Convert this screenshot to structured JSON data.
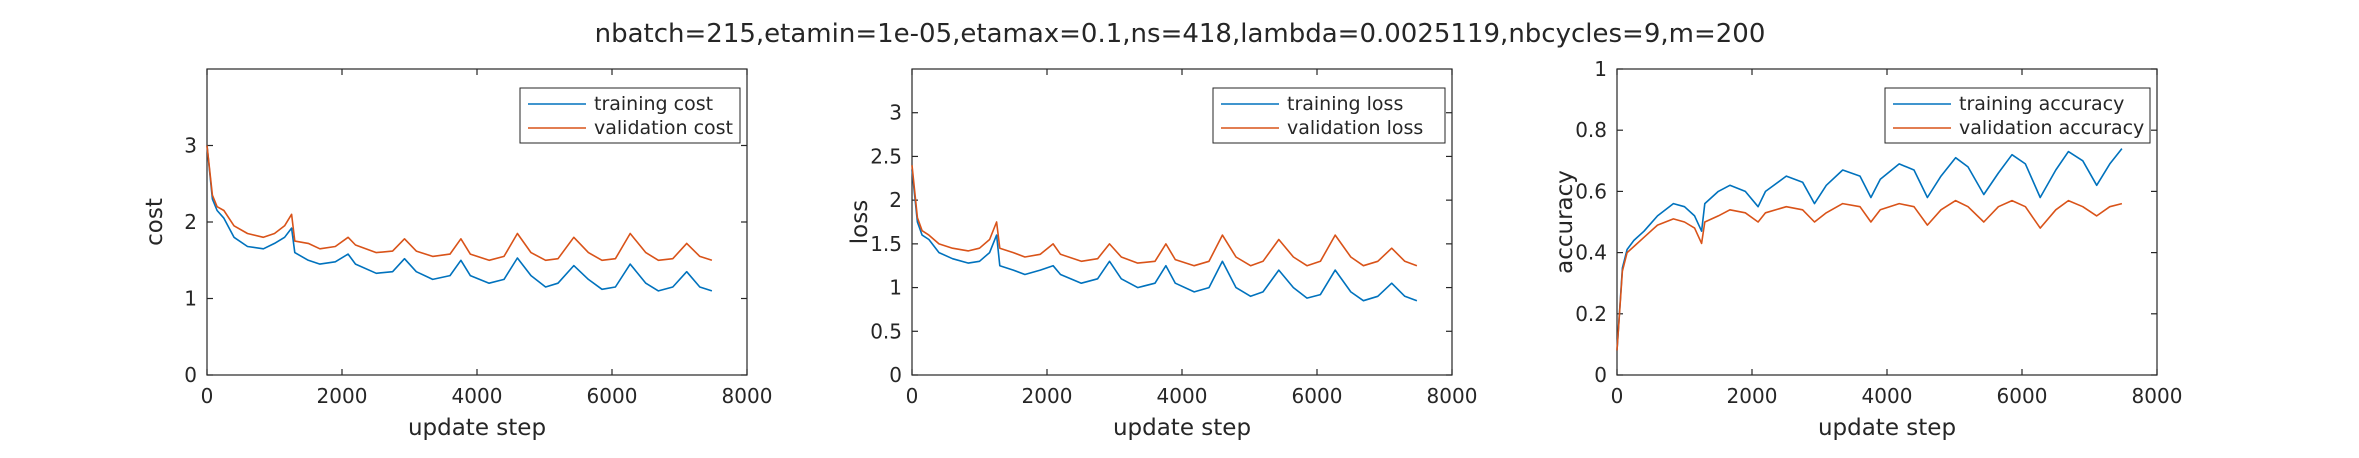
{
  "figure": {
    "title": "nbatch=215,etamin=1e-05,etamax=0.1,ns=418,lambda=0.0025119,nbcycles=9,m=200"
  },
  "chart_data": [
    {
      "type": "line",
      "xlabel": "update step",
      "ylabel": "cost",
      "xlim": [
        0,
        8000
      ],
      "ylim": [
        0,
        4
      ],
      "xticks": [
        0,
        2000,
        4000,
        6000,
        8000
      ],
      "yticks": [
        0,
        1,
        2,
        3
      ],
      "legend_position": "top-right",
      "series": [
        {
          "name": "training cost",
          "color": "#0072BD",
          "x": [
            0,
            80,
            150,
            250,
            400,
            600,
            836,
            1000,
            1150,
            1254,
            1300,
            1500,
            1672,
            1900,
            2090,
            2200,
            2508,
            2750,
            2926,
            3100,
            3344,
            3600,
            3762,
            3900,
            4180,
            4400,
            4598,
            4800,
            5016,
            5200,
            5434,
            5650,
            5852,
            6050,
            6270,
            6500,
            6688,
            6900,
            7106,
            7300,
            7480
          ],
          "y": [
            3.0,
            2.3,
            2.15,
            2.05,
            1.8,
            1.68,
            1.65,
            1.72,
            1.8,
            1.92,
            1.6,
            1.5,
            1.45,
            1.48,
            1.58,
            1.45,
            1.33,
            1.35,
            1.52,
            1.35,
            1.25,
            1.3,
            1.5,
            1.3,
            1.2,
            1.25,
            1.53,
            1.3,
            1.15,
            1.2,
            1.43,
            1.25,
            1.12,
            1.15,
            1.45,
            1.2,
            1.1,
            1.15,
            1.35,
            1.15,
            1.1
          ]
        },
        {
          "name": "validation cost",
          "color": "#D95319",
          "x": [
            0,
            80,
            150,
            250,
            400,
            600,
            836,
            1000,
            1150,
            1254,
            1300,
            1500,
            1672,
            1900,
            2090,
            2200,
            2508,
            2750,
            2926,
            3100,
            3344,
            3600,
            3762,
            3900,
            4180,
            4400,
            4598,
            4800,
            5016,
            5200,
            5434,
            5650,
            5852,
            6050,
            6270,
            6500,
            6688,
            6900,
            7106,
            7300,
            7480
          ],
          "y": [
            3.0,
            2.35,
            2.2,
            2.15,
            1.95,
            1.85,
            1.8,
            1.85,
            1.95,
            2.1,
            1.75,
            1.72,
            1.65,
            1.68,
            1.8,
            1.7,
            1.6,
            1.62,
            1.78,
            1.62,
            1.55,
            1.58,
            1.78,
            1.58,
            1.5,
            1.55,
            1.85,
            1.6,
            1.5,
            1.52,
            1.8,
            1.6,
            1.5,
            1.52,
            1.85,
            1.6,
            1.5,
            1.52,
            1.72,
            1.55,
            1.5
          ]
        }
      ]
    },
    {
      "type": "line",
      "xlabel": "update step",
      "ylabel": "loss",
      "xlim": [
        0,
        8000
      ],
      "ylim": [
        0,
        3.5
      ],
      "xticks": [
        0,
        2000,
        4000,
        6000,
        8000
      ],
      "yticks": [
        0,
        0.5,
        1,
        1.5,
        2,
        2.5,
        3
      ],
      "legend_position": "top-right",
      "series": [
        {
          "name": "training loss",
          "color": "#0072BD",
          "x": [
            0,
            80,
            150,
            250,
            400,
            600,
            836,
            1000,
            1150,
            1254,
            1300,
            1500,
            1672,
            1900,
            2090,
            2200,
            2508,
            2750,
            2926,
            3100,
            3344,
            3600,
            3762,
            3900,
            4180,
            4400,
            4598,
            4800,
            5016,
            5200,
            5434,
            5650,
            5852,
            6050,
            6270,
            6500,
            6688,
            6900,
            7106,
            7300,
            7480
          ],
          "y": [
            2.35,
            1.75,
            1.6,
            1.55,
            1.4,
            1.33,
            1.28,
            1.3,
            1.4,
            1.6,
            1.25,
            1.2,
            1.15,
            1.2,
            1.25,
            1.15,
            1.05,
            1.1,
            1.3,
            1.1,
            1.0,
            1.05,
            1.25,
            1.05,
            0.95,
            1.0,
            1.3,
            1.0,
            0.9,
            0.95,
            1.2,
            1.0,
            0.88,
            0.92,
            1.2,
            0.95,
            0.85,
            0.9,
            1.05,
            0.9,
            0.85
          ]
        },
        {
          "name": "validation loss",
          "color": "#D95319",
          "x": [
            0,
            80,
            150,
            250,
            400,
            600,
            836,
            1000,
            1150,
            1254,
            1300,
            1500,
            1672,
            1900,
            2090,
            2200,
            2508,
            2750,
            2926,
            3100,
            3344,
            3600,
            3762,
            3900,
            4180,
            4400,
            4598,
            4800,
            5016,
            5200,
            5434,
            5650,
            5852,
            6050,
            6270,
            6500,
            6688,
            6900,
            7106,
            7300,
            7480
          ],
          "y": [
            2.4,
            1.8,
            1.65,
            1.6,
            1.5,
            1.45,
            1.42,
            1.45,
            1.55,
            1.75,
            1.45,
            1.4,
            1.35,
            1.38,
            1.5,
            1.38,
            1.3,
            1.33,
            1.5,
            1.35,
            1.28,
            1.3,
            1.5,
            1.32,
            1.25,
            1.3,
            1.6,
            1.35,
            1.25,
            1.3,
            1.55,
            1.35,
            1.25,
            1.3,
            1.6,
            1.35,
            1.25,
            1.3,
            1.45,
            1.3,
            1.25
          ]
        }
      ]
    },
    {
      "type": "line",
      "xlabel": "update step",
      "ylabel": "accuracy",
      "xlim": [
        0,
        8000
      ],
      "ylim": [
        0,
        1
      ],
      "xticks": [
        0,
        2000,
        4000,
        6000,
        8000
      ],
      "yticks": [
        0,
        0.2,
        0.4,
        0.6,
        0.8,
        1
      ],
      "legend_position": "top-right",
      "series": [
        {
          "name": "training accuracy",
          "color": "#0072BD",
          "x": [
            0,
            80,
            150,
            250,
            400,
            600,
            836,
            1000,
            1150,
            1254,
            1300,
            1500,
            1672,
            1900,
            2090,
            2200,
            2508,
            2750,
            2926,
            3100,
            3344,
            3600,
            3762,
            3900,
            4180,
            4400,
            4598,
            4800,
            5016,
            5200,
            5434,
            5650,
            5852,
            6050,
            6270,
            6500,
            6688,
            6900,
            7106,
            7300,
            7480
          ],
          "y": [
            0.08,
            0.35,
            0.41,
            0.44,
            0.47,
            0.52,
            0.56,
            0.55,
            0.52,
            0.47,
            0.56,
            0.6,
            0.62,
            0.6,
            0.55,
            0.6,
            0.65,
            0.63,
            0.56,
            0.62,
            0.67,
            0.65,
            0.58,
            0.64,
            0.69,
            0.67,
            0.58,
            0.65,
            0.71,
            0.68,
            0.59,
            0.66,
            0.72,
            0.69,
            0.58,
            0.67,
            0.73,
            0.7,
            0.62,
            0.69,
            0.74
          ]
        },
        {
          "name": "validation accuracy",
          "color": "#D95319",
          "x": [
            0,
            80,
            150,
            250,
            400,
            600,
            836,
            1000,
            1150,
            1254,
            1300,
            1500,
            1672,
            1900,
            2090,
            2200,
            2508,
            2750,
            2926,
            3100,
            3344,
            3600,
            3762,
            3900,
            4180,
            4400,
            4598,
            4800,
            5016,
            5200,
            5434,
            5650,
            5852,
            6050,
            6270,
            6500,
            6688,
            6900,
            7106,
            7300,
            7480
          ],
          "y": [
            0.08,
            0.34,
            0.4,
            0.42,
            0.45,
            0.49,
            0.51,
            0.5,
            0.48,
            0.43,
            0.5,
            0.52,
            0.54,
            0.53,
            0.5,
            0.53,
            0.55,
            0.54,
            0.5,
            0.53,
            0.56,
            0.55,
            0.5,
            0.54,
            0.56,
            0.55,
            0.49,
            0.54,
            0.57,
            0.55,
            0.5,
            0.55,
            0.57,
            0.55,
            0.48,
            0.54,
            0.57,
            0.55,
            0.52,
            0.55,
            0.56
          ]
        }
      ]
    }
  ]
}
